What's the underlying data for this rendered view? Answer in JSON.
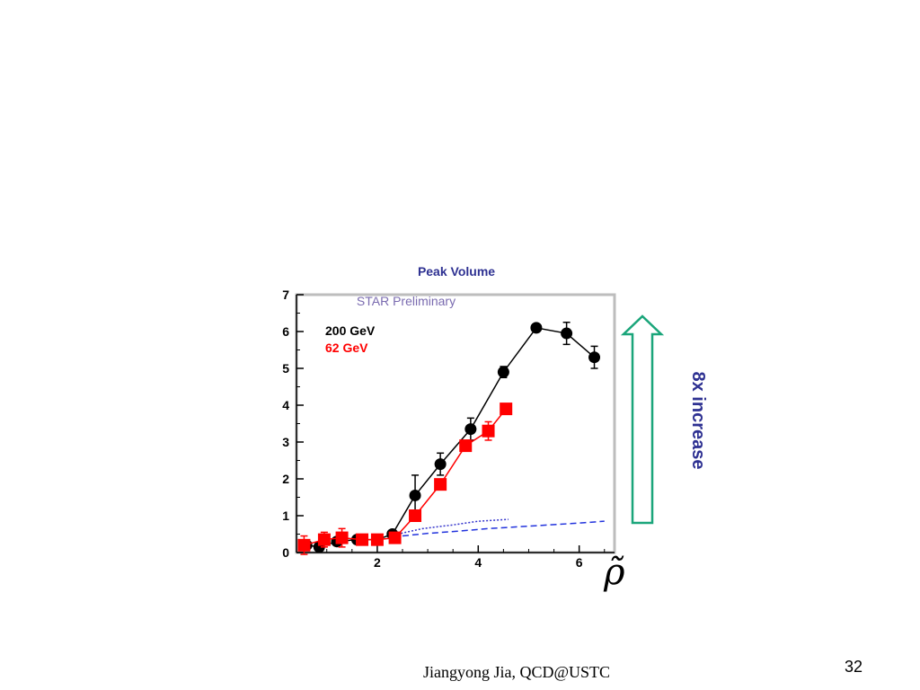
{
  "slide": {
    "footer": "Jiangyong Jia,  QCD@USTC",
    "page_number": "32",
    "arrow_label": "8x increase",
    "arrow_color": "#1aa57a",
    "x_symbol": "ρ̃"
  },
  "chart_data": {
    "type": "line",
    "title": "Peak Volume",
    "watermark": "STAR Preliminary",
    "xlim": [
      0.4,
      6.7
    ],
    "ylim": [
      0,
      7
    ],
    "x_ticks": [
      2,
      4,
      6
    ],
    "y_ticks": [
      0,
      1,
      2,
      3,
      4,
      5,
      6,
      7
    ],
    "legend": [
      "200 GeV",
      "62 GeV"
    ],
    "series": [
      {
        "name": "200 GeV",
        "color": "#000000",
        "marker": "circle",
        "points": [
          {
            "x": 0.6,
            "y": 0.2,
            "err": 0.1
          },
          {
            "x": 0.85,
            "y": 0.15,
            "err": 0.1
          },
          {
            "x": 1.2,
            "y": 0.3,
            "err": 0.1
          },
          {
            "x": 1.6,
            "y": 0.35,
            "err": 0.1
          },
          {
            "x": 2.0,
            "y": 0.35,
            "err": 0.1
          },
          {
            "x": 2.3,
            "y": 0.5,
            "err": 0.1
          },
          {
            "x": 2.75,
            "y": 1.55,
            "err": 0.55
          },
          {
            "x": 3.25,
            "y": 2.4,
            "err": 0.3
          },
          {
            "x": 3.85,
            "y": 3.35,
            "err": 0.3
          },
          {
            "x": 4.5,
            "y": 4.9,
            "err": 0.15
          },
          {
            "x": 5.15,
            "y": 6.1,
            "err": 0.1
          },
          {
            "x": 5.75,
            "y": 5.95,
            "err": 0.3
          },
          {
            "x": 6.3,
            "y": 5.3,
            "err": 0.3
          }
        ]
      },
      {
        "name": "62 GeV",
        "color": "#ff0000",
        "marker": "square",
        "points": [
          {
            "x": 0.55,
            "y": 0.2,
            "err": 0.25
          },
          {
            "x": 0.95,
            "y": 0.35,
            "err": 0.2
          },
          {
            "x": 1.3,
            "y": 0.4,
            "err": 0.25
          },
          {
            "x": 1.7,
            "y": 0.35,
            "err": 0.1
          },
          {
            "x": 2.0,
            "y": 0.35,
            "err": 0.1
          },
          {
            "x": 2.35,
            "y": 0.4,
            "err": 0.1
          },
          {
            "x": 2.75,
            "y": 1.0,
            "err": 0.1
          },
          {
            "x": 3.25,
            "y": 1.85,
            "err": 0.1
          },
          {
            "x": 3.75,
            "y": 2.9,
            "err": 0.15
          },
          {
            "x": 4.2,
            "y": 3.3,
            "err": 0.25
          },
          {
            "x": 4.55,
            "y": 3.9,
            "err": 0.1
          }
        ]
      }
    ],
    "reference_curves": [
      {
        "color": "#3333cc",
        "style": "dotted",
        "x": [
          2.4,
          2.9,
          3.5,
          4.0,
          4.6
        ],
        "y": [
          0.5,
          0.65,
          0.75,
          0.85,
          0.9
        ]
      },
      {
        "color": "#2233dd",
        "style": "dashed",
        "x": [
          2.5,
          3.0,
          3.6,
          4.2,
          4.8,
          5.4,
          6.0,
          6.5
        ],
        "y": [
          0.45,
          0.52,
          0.58,
          0.65,
          0.7,
          0.75,
          0.8,
          0.85
        ]
      }
    ]
  }
}
